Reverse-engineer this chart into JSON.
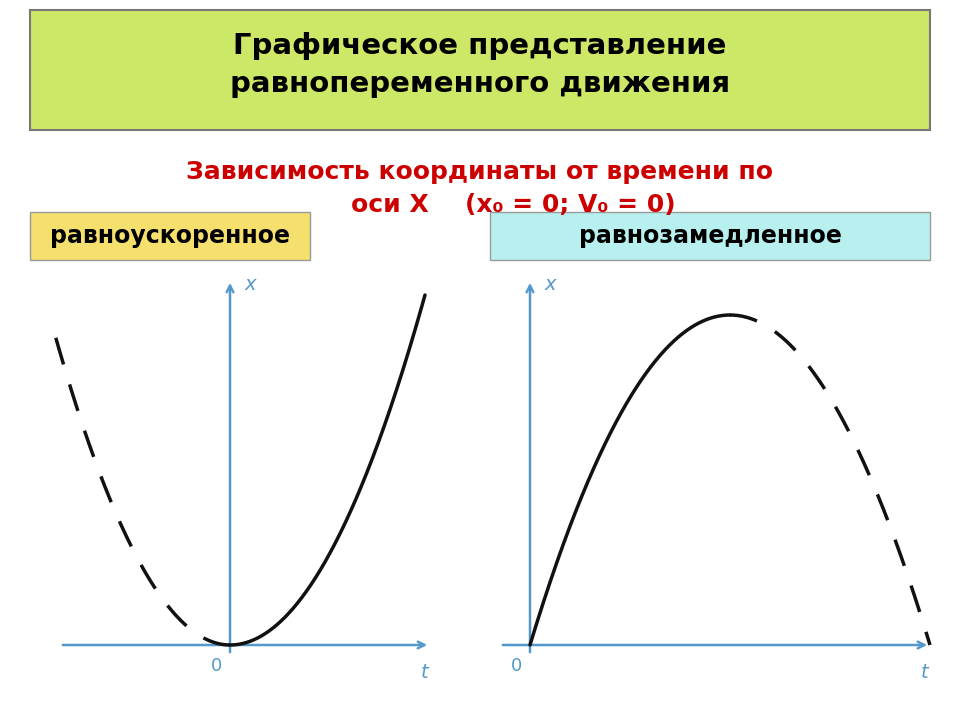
{
  "title_text": "Графическое представление\nравнопеременного движения",
  "title_bg": "#cce866",
  "subtitle_line1": "Зависимость координаты от времени по",
  "subtitle_line2_main": "оси X",
  "subtitle_formula": "(х₀ = 0; V₀ = 0)",
  "subtitle_color": "#cc0000",
  "label_left": "равноускоренное",
  "label_right": "равнозамедленное",
  "label_left_bg": "#f5e06e",
  "label_right_bg": "#b8f0f0",
  "axis_color": "#5599cc",
  "curve_color": "#111111",
  "bg_color": "#ffffff"
}
